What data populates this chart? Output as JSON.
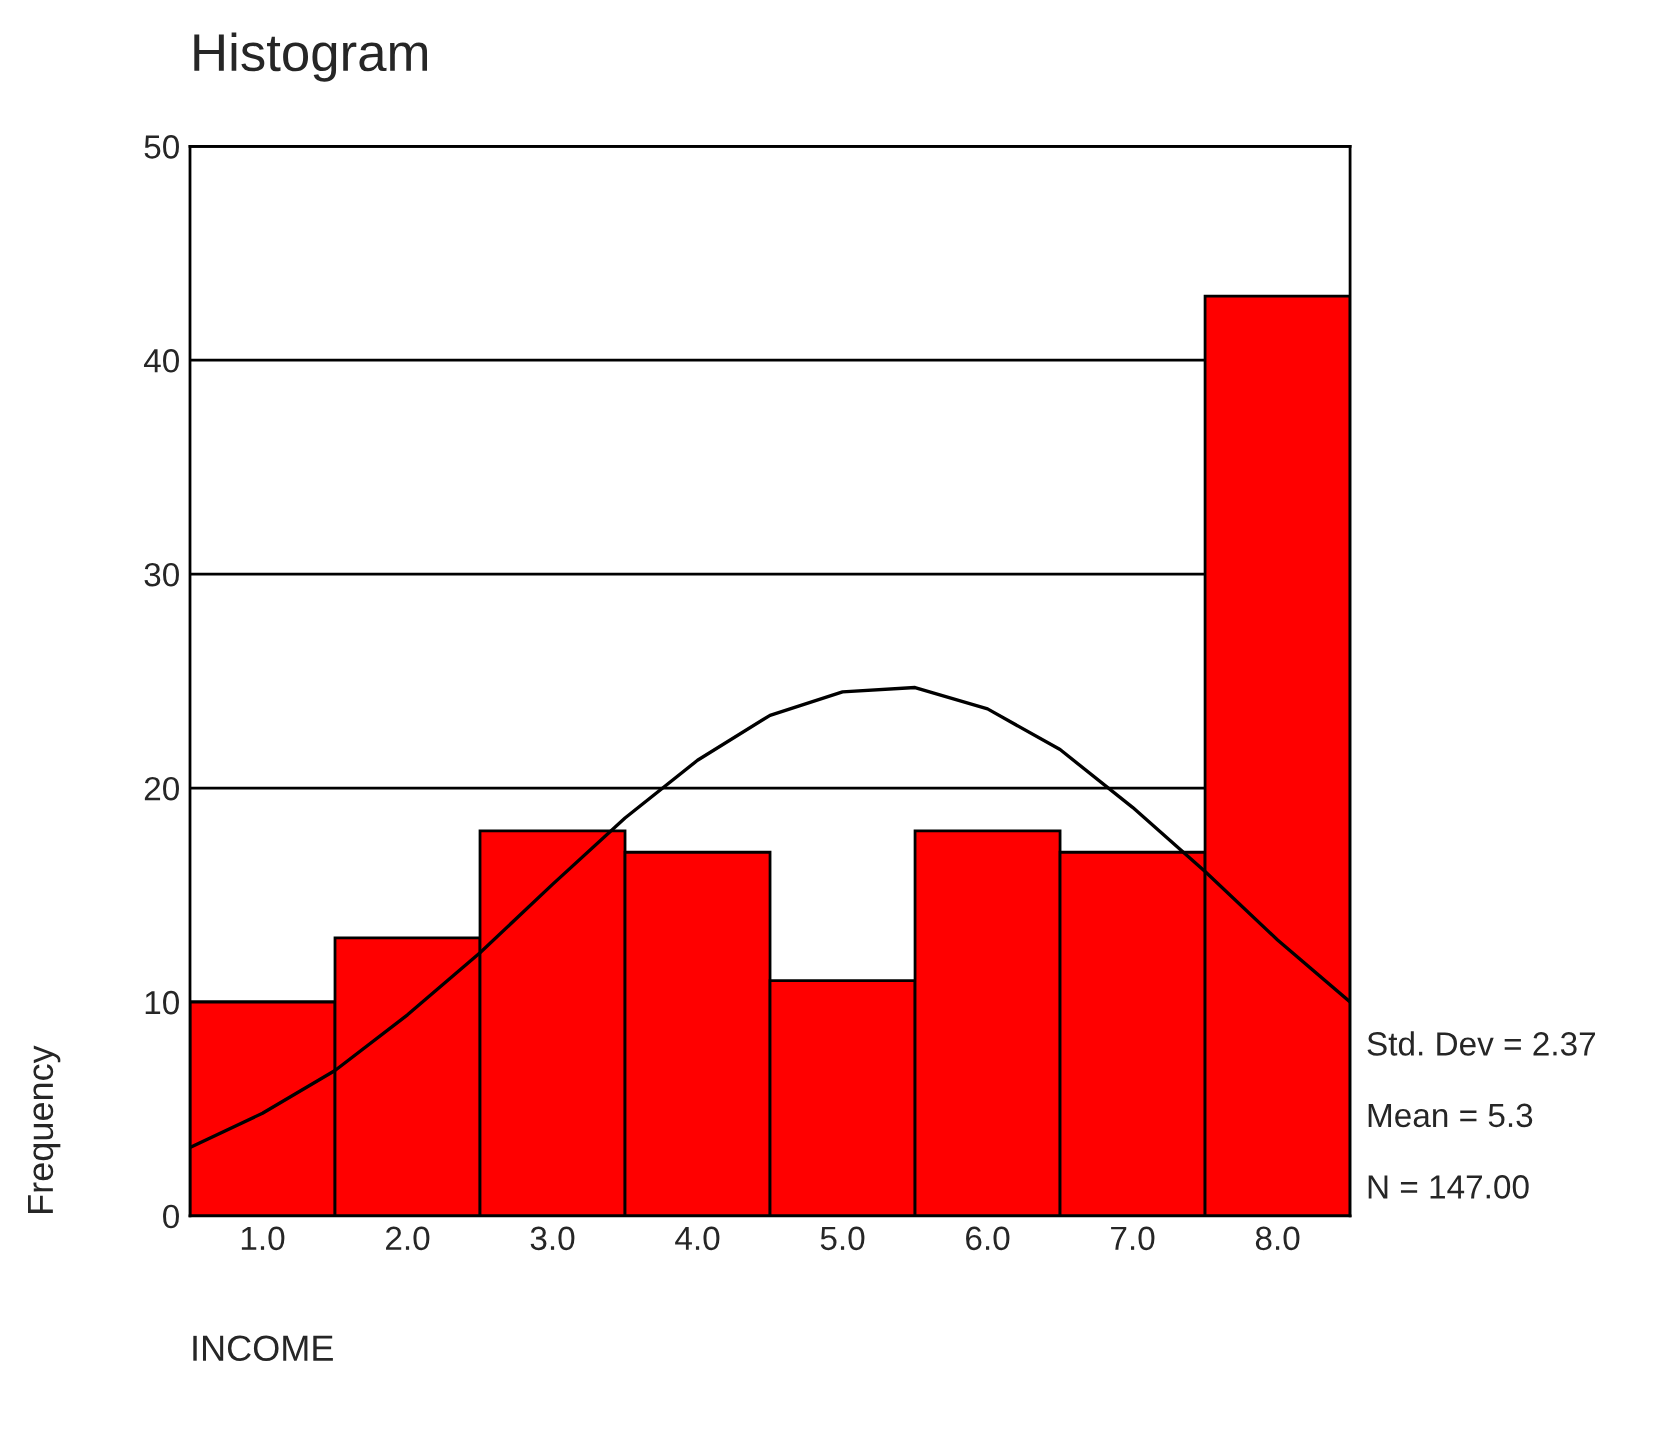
{
  "chart_data": {
    "type": "histogram",
    "title": "Histogram",
    "xlabel": "INCOME",
    "ylabel": "Frequency",
    "bins": [
      0.5,
      1.5,
      2.5,
      3.5,
      4.5,
      5.5,
      6.5,
      7.5,
      8.5
    ],
    "values": [
      10,
      13,
      18,
      17,
      11,
      18,
      17,
      43
    ],
    "color": "#ff0000",
    "series": [
      {
        "type": "line",
        "color": "#000000",
        "x": [
          0.5,
          1.0,
          1.5,
          2.0,
          2.5,
          3.0,
          3.5,
          4.0,
          4.5,
          5.0,
          5.5,
          6.0,
          6.5,
          7.0,
          7.5,
          8.0,
          8.5
        ],
        "values": [
          3.2,
          4.8,
          6.8,
          9.4,
          12.3,
          15.5,
          18.6,
          21.3,
          23.4,
          24.5,
          24.7,
          23.7,
          21.8,
          19.1,
          16.1,
          12.9,
          10.0
        ]
      }
    ],
    "xlim": [
      0.5,
      8.5
    ],
    "ylim": [
      0,
      50
    ],
    "xticks": [
      {
        "value": 1,
        "label": "1.0"
      },
      {
        "value": 2,
        "label": "2.0"
      },
      {
        "value": 3,
        "label": "3.0"
      },
      {
        "value": 4,
        "label": "4.0"
      },
      {
        "value": 5,
        "label": "5.0"
      },
      {
        "value": 6,
        "label": "6.0"
      },
      {
        "value": 7,
        "label": "7.0"
      },
      {
        "value": 8,
        "label": "8.0"
      }
    ],
    "yticks": [
      0,
      10,
      20,
      30,
      40,
      50
    ],
    "grid": "y",
    "annotations": [
      "Std. Dev = 2.37",
      "Mean = 5.3",
      "N = 147.00"
    ]
  }
}
